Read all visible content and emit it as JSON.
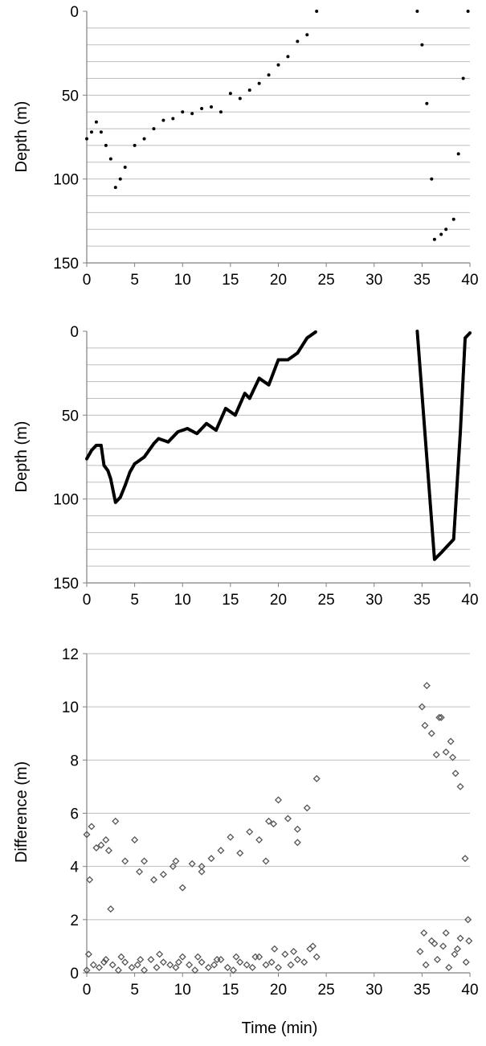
{
  "chart_data": [
    {
      "type": "scatter",
      "ylabel": "Depth (m)",
      "xlim": [
        0,
        40
      ],
      "ylim": [
        0,
        150
      ],
      "y_inverted": true,
      "x_ticks": [
        "0",
        "5",
        "10",
        "15",
        "20",
        "25",
        "30",
        "35",
        "40"
      ],
      "y_ticks": [
        "0",
        "50",
        "100",
        "150"
      ],
      "grid": "horizontal, every 10 m",
      "marker": "small black dots",
      "series": [
        {
          "x": [
            0.0,
            0.5,
            1.0,
            1.5,
            2.0,
            2.5,
            3.0,
            3.5,
            4.0,
            5.0,
            6.0,
            7.0,
            8.0,
            9.0,
            10.0,
            11.0,
            12.0,
            13.0,
            14.0,
            15.0,
            16.0,
            17.0,
            18.0,
            19.0,
            20.0,
            21.0,
            22.0,
            23.0,
            24.0,
            34.5,
            35.0,
            35.5,
            36.0,
            36.3,
            37.0,
            37.5,
            38.3,
            38.8,
            39.3,
            39.8
          ],
          "y": [
            76,
            72,
            66,
            72,
            80,
            88,
            105,
            100,
            93,
            80,
            76,
            70,
            65,
            64,
            60,
            61,
            58,
            57,
            60,
            49,
            52,
            47,
            43,
            38,
            32,
            27,
            18,
            14,
            0,
            0,
            20,
            55,
            100,
            136,
            133,
            130,
            124,
            85,
            40,
            0
          ]
        }
      ]
    },
    {
      "type": "line",
      "ylabel": "Depth (m)",
      "xlim": [
        0,
        40
      ],
      "ylim": [
        0,
        150
      ],
      "y_inverted": true,
      "x_ticks": [
        "0",
        "5",
        "10",
        "15",
        "20",
        "25",
        "30",
        "35",
        "40"
      ],
      "y_ticks": [
        "0",
        "50",
        "100",
        "150"
      ],
      "grid": "horizontal, every 10 m",
      "marker": "small black dots forming a continuous trace",
      "series": [
        {
          "x": [
            0.0,
            0.5,
            1.0,
            1.5,
            1.8,
            2.2,
            2.5,
            3.0,
            3.5,
            4.0,
            4.5,
            5.0,
            6.0,
            7.0,
            7.5,
            8.5,
            9.5,
            10.5,
            11.5,
            12.5,
            13.5,
            14.5,
            15.5,
            16.5,
            17.0,
            18.0,
            19.0,
            20.0,
            21.0,
            22.0,
            23.0,
            24.0,
            34.5,
            36.3,
            37.0,
            38.3,
            39.0,
            39.5,
            40.0
          ],
          "y": [
            76,
            71,
            68,
            68,
            80,
            83,
            88,
            102,
            99,
            92,
            84,
            79,
            75,
            67,
            64,
            66,
            60,
            58,
            61,
            55,
            59,
            46,
            50,
            37,
            40,
            28,
            32,
            17,
            17,
            13,
            4,
            0,
            0,
            136,
            132,
            124,
            60,
            4,
            1
          ]
        }
      ]
    },
    {
      "type": "scatter",
      "xlabel": "Time (min)",
      "ylabel": "Difference (m)",
      "xlim": [
        0,
        40
      ],
      "ylim": [
        0,
        12
      ],
      "x_ticks": [
        "0",
        "5",
        "10",
        "15",
        "20",
        "25",
        "30",
        "35",
        "40"
      ],
      "y_ticks": [
        "0",
        "2",
        "4",
        "6",
        "8",
        "10",
        "12"
      ],
      "grid": "horizontal, every 2 m",
      "marker": "open grey diamonds",
      "series": [
        {
          "x": [
            0.0,
            0.5,
            1.0,
            1.5,
            2.0,
            2.5,
            3.0,
            4.0,
            5.0,
            6.0,
            7.0,
            8.0,
            9.0,
            10.0,
            11.0,
            12.0,
            13.0,
            14.0,
            15.0,
            16.0,
            17.0,
            18.0,
            19.0,
            20.0,
            21.0,
            22.0,
            23.0,
            24.0,
            35.0,
            35.5,
            36.0,
            36.5,
            37.0,
            37.5,
            38.0,
            38.5,
            39.0,
            39.5,
            0.3,
            2.3,
            5.5,
            9.3,
            12.0,
            18.7,
            19.5,
            22.0,
            35.3,
            36.8,
            38.2,
            39.8
          ],
          "y": [
            5.2,
            5.5,
            4.7,
            4.8,
            5.0,
            2.4,
            5.7,
            4.2,
            5.0,
            4.2,
            3.5,
            3.7,
            4.0,
            3.2,
            4.1,
            3.8,
            4.3,
            4.6,
            5.1,
            4.5,
            5.3,
            5.0,
            5.7,
            6.5,
            5.8,
            4.9,
            6.2,
            7.3,
            10.0,
            10.8,
            9.0,
            8.2,
            9.6,
            8.3,
            8.7,
            7.5,
            7.0,
            4.3,
            3.5,
            4.6,
            3.8,
            4.2,
            4.0,
            4.2,
            5.6,
            5.4,
            9.3,
            9.6,
            8.1,
            2.0
          ]
        },
        {
          "x": [
            0,
            0.7,
            1.3,
            2,
            2.7,
            3.3,
            4,
            4.7,
            5.3,
            6,
            6.7,
            7.3,
            8,
            8.7,
            9.3,
            10,
            10.7,
            11.3,
            12,
            12.7,
            13.3,
            14,
            14.7,
            15.3,
            16,
            16.7,
            17.3,
            18,
            18.7,
            19.3,
            20,
            20.7,
            21.3,
            22,
            22.7,
            23.3,
            24,
            34.8,
            35.4,
            36,
            36.6,
            37.2,
            37.8,
            38.4,
            39,
            39.6,
            0.2,
            1.8,
            3.6,
            5.6,
            7.6,
            9.6,
            11.6,
            13.6,
            15.6,
            17.6,
            19.6,
            21.6,
            23.6,
            35.2,
            36.3,
            37.5,
            38.7,
            39.9
          ],
          "y": [
            0.1,
            0.3,
            0.2,
            0.5,
            0.3,
            0.1,
            0.4,
            0.2,
            0.3,
            0.1,
            0.5,
            0.2,
            0.4,
            0.3,
            0.2,
            0.6,
            0.3,
            0.1,
            0.4,
            0.2,
            0.3,
            0.5,
            0.2,
            0.1,
            0.4,
            0.3,
            0.2,
            0.6,
            0.3,
            0.4,
            0.2,
            0.7,
            0.3,
            0.5,
            0.4,
            0.9,
            0.6,
            0.8,
            0.3,
            1.2,
            0.5,
            1.0,
            0.2,
            0.7,
            1.3,
            0.4,
            0.7,
            0.4,
            0.6,
            0.5,
            0.7,
            0.4,
            0.6,
            0.5,
            0.6,
            0.6,
            0.9,
            0.8,
            1.0,
            1.5,
            1.1,
            1.5,
            0.9,
            1.2
          ]
        }
      ]
    }
  ]
}
